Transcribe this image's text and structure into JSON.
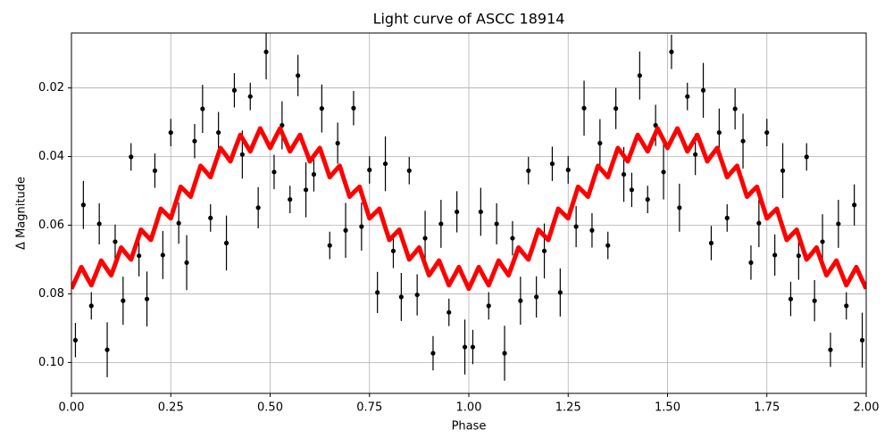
{
  "chart_data": {
    "type": "scatter",
    "title": "Light curve of ASCC 18914",
    "x_label": "Phase",
    "y_label": "Δ Magnitude",
    "xlim": [
      0,
      2
    ],
    "ylim": [
      0.109,
      0.004
    ],
    "xticks": [
      {
        "value": 0,
        "label": "0.00"
      },
      {
        "value": 0.25,
        "label": "0.25"
      },
      {
        "value": 0.5,
        "label": "0.50"
      },
      {
        "value": 0.75,
        "label": "0.75"
      },
      {
        "value": 1,
        "label": "1.00"
      },
      {
        "value": 1.25,
        "label": "1.25"
      },
      {
        "value": 1.5,
        "label": "1.50"
      },
      {
        "value": 1.75,
        "label": "1.75"
      },
      {
        "value": 2,
        "label": "2.00"
      }
    ],
    "yticks": [
      0.02,
      0.04,
      0.06,
      0.08,
      {
        "value": 0.1,
        "label": "0.10"
      }
    ],
    "grid": true,
    "series": [
      {
        "type": "scatter",
        "color": "#000000",
        "x": [
          0.01,
          0.03,
          0.05,
          0.07,
          0.09,
          0.11,
          0.13,
          0.15,
          0.17,
          0.19,
          0.21,
          0.23,
          0.25,
          0.27,
          0.29,
          0.31,
          0.33,
          0.35,
          0.37,
          0.39,
          0.41,
          0.43,
          0.45,
          0.47,
          0.49,
          0.51,
          0.53,
          0.55,
          0.57,
          0.59,
          0.61,
          0.63,
          0.65,
          0.67,
          0.69,
          0.71,
          0.73,
          0.75,
          0.77,
          0.79,
          0.81,
          0.83,
          0.85,
          0.87,
          0.89,
          0.91,
          0.93,
          0.95,
          0.97,
          0.99,
          1.01,
          1.03,
          1.05,
          1.07,
          1.09,
          1.11,
          1.13,
          1.15,
          1.17,
          1.19,
          1.21,
          1.23,
          1.25,
          1.27,
          1.29,
          1.31,
          1.33,
          1.35,
          1.37,
          1.39,
          1.41,
          1.43,
          1.45,
          1.47,
          1.49,
          1.51,
          1.53,
          1.55,
          1.57,
          1.59,
          1.61,
          1.63,
          1.65,
          1.67,
          1.69,
          1.71,
          1.73,
          1.75,
          1.77,
          1.79,
          1.81,
          1.83,
          1.85,
          1.87,
          1.89,
          1.91,
          1.93,
          1.95,
          1.97,
          1.99
        ],
        "values": [
          0.0935,
          0.0541,
          0.0835,
          0.0596,
          0.0963,
          0.0648,
          0.082,
          0.0401,
          0.0689,
          0.0815,
          0.0441,
          0.0687,
          0.033,
          0.0594,
          0.0709,
          0.0355,
          0.0261,
          0.0579,
          0.033,
          0.0652,
          0.0207,
          0.0394,
          0.0225,
          0.0549,
          0.0095,
          0.0445,
          0.0309,
          0.0525,
          0.0164,
          0.0497,
          0.0452,
          0.026,
          0.0659,
          0.0361,
          0.0615,
          0.0259,
          0.0604,
          0.0439,
          0.0796,
          0.0421,
          0.0675,
          0.0809,
          0.0441,
          0.0803,
          0.0638,
          0.0973,
          0.0596,
          0.0854,
          0.0561,
          0.0955,
          0.0955,
          0.0561,
          0.0835,
          0.0596,
          0.0973,
          0.0638,
          0.082,
          0.0441,
          0.0809,
          0.0675,
          0.0421,
          0.0796,
          0.0439,
          0.0604,
          0.0259,
          0.0615,
          0.0361,
          0.0659,
          0.026,
          0.0452,
          0.0497,
          0.0164,
          0.0525,
          0.0309,
          0.0445,
          0.0095,
          0.0549,
          0.0225,
          0.0394,
          0.0207,
          0.0652,
          0.033,
          0.0579,
          0.0261,
          0.0355,
          0.0709,
          0.0594,
          0.033,
          0.0687,
          0.0441,
          0.0815,
          0.0689,
          0.0401,
          0.082,
          0.0648,
          0.0963,
          0.0596,
          0.0835,
          0.0541,
          0.0935
        ],
        "errors": [
          0.005,
          0.007,
          0.004,
          0.006,
          0.008,
          0.005,
          0.007,
          0.004,
          0.006,
          0.008,
          0.005,
          0.007,
          0.004,
          0.006,
          0.008,
          0.005,
          0.007,
          0.004,
          0.006,
          0.008,
          0.005,
          0.007,
          0.004,
          0.006,
          0.008,
          0.005,
          0.007,
          0.004,
          0.006,
          0.008,
          0.005,
          0.007,
          0.004,
          0.006,
          0.008,
          0.005,
          0.007,
          0.004,
          0.006,
          0.008,
          0.005,
          0.007,
          0.004,
          0.006,
          0.008,
          0.005,
          0.007,
          0.004,
          0.006,
          0.008,
          0.005,
          0.007,
          0.004,
          0.006,
          0.008,
          0.005,
          0.007,
          0.004,
          0.006,
          0.008,
          0.005,
          0.007,
          0.004,
          0.006,
          0.008,
          0.005,
          0.007,
          0.004,
          0.006,
          0.008,
          0.005,
          0.007,
          0.004,
          0.006,
          0.008,
          0.005,
          0.007,
          0.004,
          0.006,
          0.008,
          0.005,
          0.007,
          0.004,
          0.006,
          0.008,
          0.005,
          0.007,
          0.004,
          0.006,
          0.008,
          0.005,
          0.007,
          0.004,
          0.006,
          0.008,
          0.005,
          0.007,
          0.004,
          0.006,
          0.008
        ]
      },
      {
        "type": "line",
        "color": "#ff0000",
        "x": [
          0,
          0.0125,
          0.025,
          0.0375,
          0.05,
          0.0625,
          0.075,
          0.0875,
          0.1,
          0.1125,
          0.125,
          0.1375,
          0.15,
          0.1625,
          0.175,
          0.1875,
          0.2,
          0.2125,
          0.225,
          0.2375,
          0.25,
          0.2625,
          0.275,
          0.2875,
          0.3,
          0.3125,
          0.325,
          0.3375,
          0.35,
          0.3625,
          0.375,
          0.3875,
          0.4,
          0.4125,
          0.425,
          0.4375,
          0.45,
          0.4625,
          0.475,
          0.4875,
          0.5,
          0.5125,
          0.525,
          0.5375,
          0.55,
          0.5625,
          0.575,
          0.5875,
          0.6,
          0.6125,
          0.625,
          0.6375,
          0.65,
          0.6625,
          0.675,
          0.6875,
          0.7,
          0.7125,
          0.725,
          0.7375,
          0.75,
          0.7625,
          0.775,
          0.7875,
          0.8,
          0.8125,
          0.825,
          0.8375,
          0.85,
          0.8625,
          0.875,
          0.8875,
          0.9,
          0.9125,
          0.925,
          0.9375,
          0.95,
          0.9625,
          0.975,
          0.9875,
          1,
          1.0125,
          1.025,
          1.0375,
          1.05,
          1.0625,
          1.075,
          1.0875,
          1.1,
          1.1125,
          1.125,
          1.1375,
          1.15,
          1.1625,
          1.175,
          1.1875,
          1.2,
          1.2125,
          1.225,
          1.2375,
          1.25,
          1.2625,
          1.275,
          1.2875,
          1.3,
          1.3125,
          1.325,
          1.3375,
          1.35,
          1.3625,
          1.375,
          1.3875,
          1.4,
          1.4125,
          1.425,
          1.4375,
          1.45,
          1.4625,
          1.475,
          1.4875,
          1.5,
          1.5125,
          1.525,
          1.5375,
          1.55,
          1.5625,
          1.575,
          1.5875,
          1.6,
          1.6125,
          1.625,
          1.6375,
          1.65,
          1.6625,
          1.675,
          1.6875,
          1.7,
          1.7125,
          1.725,
          1.7375,
          1.75,
          1.7625,
          1.775,
          1.7875,
          1.8,
          1.8125,
          1.825,
          1.8375,
          1.85,
          1.8625,
          1.875,
          1.8875,
          1.9,
          1.9125,
          1.925,
          1.9375,
          1.95,
          1.9625,
          1.975,
          1.9875,
          2
        ],
        "values": [
          0.0785,
          0.0754,
          0.0722,
          0.0749,
          0.0775,
          0.0739,
          0.0703,
          0.0725,
          0.0746,
          0.0706,
          0.0665,
          0.0683,
          0.07,
          0.0657,
          0.0613,
          0.0628,
          0.0643,
          0.0598,
          0.0552,
          0.0566,
          0.058,
          0.0534,
          0.0488,
          0.0502,
          0.0517,
          0.0472,
          0.0427,
          0.0443,
          0.046,
          0.0417,
          0.0375,
          0.0394,
          0.0414,
          0.0375,
          0.0337,
          0.0361,
          0.0385,
          0.0351,
          0.0318,
          0.0346,
          0.0375,
          0.0346,
          0.0318,
          0.0351,
          0.0385,
          0.0361,
          0.0337,
          0.0375,
          0.0414,
          0.0394,
          0.0375,
          0.0417,
          0.046,
          0.0443,
          0.0427,
          0.0472,
          0.0517,
          0.0502,
          0.0488,
          0.0534,
          0.058,
          0.0566,
          0.0552,
          0.0598,
          0.0643,
          0.0628,
          0.0613,
          0.0657,
          0.07,
          0.0683,
          0.0665,
          0.0706,
          0.0746,
          0.0725,
          0.0703,
          0.0739,
          0.0775,
          0.0749,
          0.0722,
          0.0754,
          0.0785,
          0.0754,
          0.0722,
          0.0749,
          0.0775,
          0.0739,
          0.0703,
          0.0725,
          0.0746,
          0.0706,
          0.0665,
          0.0683,
          0.07,
          0.0657,
          0.0613,
          0.0628,
          0.0643,
          0.0598,
          0.0552,
          0.0566,
          0.058,
          0.0534,
          0.0488,
          0.0502,
          0.0517,
          0.0472,
          0.0427,
          0.0443,
          0.046,
          0.0417,
          0.0375,
          0.0394,
          0.0414,
          0.0375,
          0.0337,
          0.0361,
          0.0385,
          0.0351,
          0.0318,
          0.0346,
          0.0375,
          0.0346,
          0.0318,
          0.0351,
          0.0385,
          0.0361,
          0.0337,
          0.0375,
          0.0414,
          0.0394,
          0.0375,
          0.0417,
          0.046,
          0.0443,
          0.0427,
          0.0472,
          0.0517,
          0.0502,
          0.0488,
          0.0534,
          0.058,
          0.0566,
          0.0552,
          0.0598,
          0.0643,
          0.0628,
          0.0613,
          0.0657,
          0.07,
          0.0683,
          0.0665,
          0.0706,
          0.0746,
          0.0725,
          0.0703,
          0.0739,
          0.0775,
          0.0749,
          0.0722,
          0.0754,
          0.0785
        ]
      }
    ]
  }
}
